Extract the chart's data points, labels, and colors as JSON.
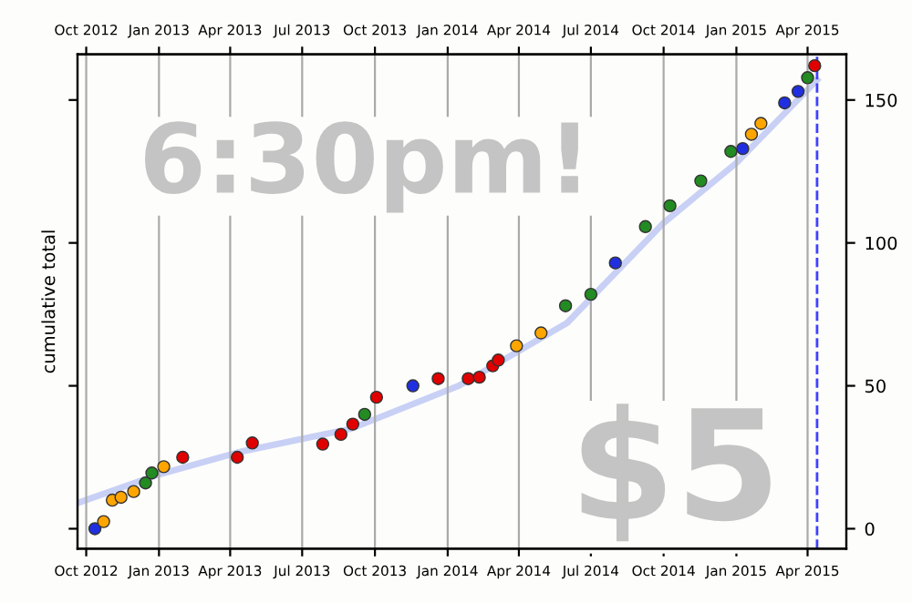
{
  "chart_data": {
    "type": "scatter",
    "ylabel": "cumulative total",
    "series": [
      {
        "type": "line",
        "color": "#c8d0f5",
        "x": [
          "2012-09-20",
          "2013-01-01",
          "2013-04-15",
          "2013-09-01",
          "2014-01-15",
          "2014-06-01",
          "2014-10-01",
          "2015-01-01",
          "2015-04-13"
        ],
        "values": [
          9,
          19,
          27,
          35,
          50,
          72,
          107,
          128,
          157
        ]
      },
      {
        "marker": "circle",
        "color": "#228b22",
        "colors": [
          "#2030e0",
          "#ffa500",
          "#ffa500",
          "#ffa500",
          "#ffa500",
          "#228b22",
          "#228b22",
          "#ffa500",
          "#e00000",
          "#e00000",
          "#e00000",
          "#e00000",
          "#e00000",
          "#e00000",
          "#228b22",
          "#e00000",
          "#2030e0",
          "#e00000",
          "#e00000",
          "#e00000",
          "#e00000",
          "#e00000",
          "#ffa500",
          "#ffa500",
          "#228b22",
          "#228b22",
          "#2030e0",
          "#228b22",
          "#228b22",
          "#228b22",
          "#228b22",
          "#2030e0",
          "#ffa500",
          "#ffa500",
          "#2030e0",
          "#2030e0",
          "#228b22",
          "#e00000"
        ],
        "x": [
          "2012-10-12",
          "2012-10-23",
          "2012-11-03",
          "2012-11-14",
          "2012-11-30",
          "2012-12-15",
          "2012-12-23",
          "2013-01-07",
          "2013-01-31",
          "2013-04-10",
          "2013-04-29",
          "2013-07-27",
          "2013-08-19",
          "2013-09-03",
          "2013-09-18",
          "2013-10-03",
          "2013-11-18",
          "2013-12-20",
          "2014-01-27",
          "2014-02-10",
          "2014-02-27",
          "2014-03-06",
          "2014-03-29",
          "2014-04-29",
          "2014-05-30",
          "2014-07-01",
          "2014-08-01",
          "2014-09-08",
          "2014-10-09",
          "2014-11-17",
          "2014-12-25",
          "2015-01-09",
          "2015-01-20",
          "2015-02-01",
          "2015-03-03",
          "2015-03-20",
          "2015-04-01",
          "2015-04-10"
        ],
        "values": [
          0,
          2.5,
          10,
          11,
          13,
          16,
          19.5,
          21.7,
          25,
          25,
          30,
          29.6,
          33,
          36.6,
          40,
          46,
          50,
          52.5,
          52.5,
          53,
          57,
          59,
          64,
          68.5,
          78,
          82,
          93,
          105.7,
          113,
          121.7,
          132,
          133,
          138,
          141.8,
          149,
          153,
          157.8,
          162
        ]
      }
    ],
    "annotations": [
      "6:30pm!",
      "$5"
    ],
    "ref_lines": [
      {
        "axis": "x",
        "value": "2015-04-13",
        "color": "#4040ff",
        "line_style": "dashed"
      }
    ],
    "xlim": [
      "2012-09-20",
      "2015-05-20"
    ],
    "xticks": [
      {
        "value": "2012-10-01",
        "label": "Oct 2012"
      },
      {
        "value": "2013-01-01",
        "label": "Jan 2013"
      },
      {
        "value": "2013-04-01",
        "label": "Apr 2013"
      },
      {
        "value": "2013-07-01",
        "label": "Jul 2013"
      },
      {
        "value": "2013-10-01",
        "label": "Oct 2013"
      },
      {
        "value": "2014-01-01",
        "label": "Jan 2014"
      },
      {
        "value": "2014-04-01",
        "label": "Apr 2014"
      },
      {
        "value": "2014-07-01",
        "label": "Jul 2014"
      },
      {
        "value": "2014-10-01",
        "label": "Oct 2014"
      },
      {
        "value": "2015-01-01",
        "label": "Jan 2015"
      },
      {
        "value": "2015-04-01",
        "label": "Apr 2015"
      }
    ],
    "x2lim": [
      "2012-09-20",
      "2015-05-20"
    ],
    "x2ticks": [
      {
        "value": "2012-10-01",
        "label": "Oct 2012"
      },
      {
        "value": "2013-01-01",
        "label": "Jan 2013"
      },
      {
        "value": "2013-04-01",
        "label": "Apr 2013"
      },
      {
        "value": "2013-07-01",
        "label": "Jul 2013"
      },
      {
        "value": "2013-10-01",
        "label": "Oct 2013"
      },
      {
        "value": "2014-01-01",
        "label": "Jan 2014"
      },
      {
        "value": "2014-04-01",
        "label": "Apr 2014"
      },
      {
        "value": "2014-07-01",
        "label": "Jul 2014"
      },
      {
        "value": "2014-10-01",
        "label": "Oct 2014"
      },
      {
        "value": "2015-01-01",
        "label": "Jan 2015"
      },
      {
        "value": "2015-04-01",
        "label": "Apr 2015"
      }
    ],
    "ylim": [
      -7,
      166
    ],
    "yticks": [
      0,
      50,
      100,
      150
    ],
    "grid": "x",
    "legend": false
  }
}
